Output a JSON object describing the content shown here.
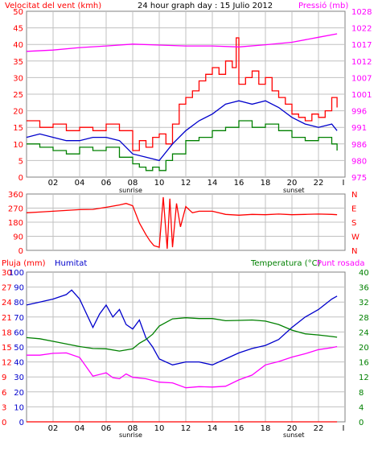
{
  "chart_data": [
    {
      "type": "line",
      "title": "24 hour graph day : 15 Julio 2012",
      "left_label": "Velocitat del vent (kmh)",
      "right_label": "Pressió (mb)",
      "ylim_left": [
        0,
        50
      ],
      "ylim_right": [
        975,
        1028
      ],
      "left_ticks": [
        "0",
        "5",
        "10",
        "15",
        "20",
        "25",
        "30",
        "35",
        "40",
        "45",
        "50"
      ],
      "right_ticks": [
        "975",
        "980",
        "986",
        "991",
        "996",
        "1001",
        "1007",
        "1012",
        "1017",
        "1022",
        "1028"
      ],
      "x_ticks": [
        "02",
        "04",
        "06",
        "08",
        "10",
        "12",
        "14",
        "16",
        "18",
        "20",
        "22"
      ],
      "x_last_tick": "I",
      "sunrise_label": "sunrise",
      "sunset_label": "sunset",
      "grid": true,
      "series": [
        {
          "color": "#ff0000",
          "kind": "steps",
          "hours": [
            0,
            1,
            2,
            3,
            4,
            5,
            6,
            7,
            8,
            8.5,
            9,
            9.5,
            10,
            10.5,
            11,
            11.5,
            12,
            12.5,
            13,
            13.5,
            14,
            14.5,
            15,
            15.5,
            15.8,
            16,
            16.5,
            17,
            17.5,
            18,
            18.5,
            19,
            19.5,
            20,
            20.5,
            21,
            21.5,
            22,
            22.5,
            23,
            23.4
          ],
          "values": [
            17,
            15,
            16,
            14,
            15,
            14,
            16,
            14,
            8,
            11,
            9,
            12,
            13,
            10,
            16,
            22,
            24,
            26,
            29,
            31,
            33,
            31,
            35,
            33,
            42,
            28,
            30,
            32,
            28,
            30,
            26,
            24,
            22,
            19,
            18,
            17,
            19,
            18,
            20,
            24,
            21
          ]
        },
        {
          "color": "#0000cc",
          "kind": "line",
          "hours": [
            0,
            1,
            2,
            3,
            4,
            5,
            6,
            7,
            8,
            9,
            10,
            11,
            12,
            13,
            14,
            15,
            16,
            17,
            18,
            19,
            20,
            21,
            22,
            23,
            23.4
          ],
          "values": [
            12,
            13,
            12,
            11,
            11,
            12,
            12,
            11,
            7,
            6,
            5,
            10,
            14,
            17,
            19,
            22,
            23,
            22,
            23,
            21,
            18,
            16,
            15,
            16,
            14
          ]
        },
        {
          "color": "#008000",
          "kind": "steps",
          "hours": [
            0,
            1,
            2,
            3,
            4,
            5,
            6,
            7,
            8,
            8.5,
            9,
            9.5,
            10,
            10.5,
            11,
            12,
            13,
            14,
            15,
            16,
            17,
            18,
            19,
            20,
            21,
            22,
            23,
            23.4
          ],
          "values": [
            10,
            9,
            8,
            7,
            9,
            8,
            9,
            6,
            4,
            3,
            2,
            3,
            2,
            5,
            7,
            11,
            12,
            14,
            15,
            17,
            15,
            16,
            14,
            12,
            11,
            12,
            10,
            8
          ]
        },
        {
          "color": "#ff00ff",
          "kind": "line",
          "axis": "right",
          "hours": [
            0,
            2,
            4,
            6,
            8,
            10,
            12,
            14,
            16,
            18,
            20,
            22,
            23.4
          ],
          "values": [
            1015.2,
            1015.6,
            1016.4,
            1016.9,
            1017.5,
            1017.2,
            1016.9,
            1016.9,
            1016.6,
            1017.3,
            1018.1,
            1019.7,
            1020.8
          ]
        }
      ]
    },
    {
      "type": "line",
      "left_ticks": [
        "0",
        "90",
        "180",
        "270",
        "360"
      ],
      "ylim_left": [
        0,
        360
      ],
      "right_letters": [
        "N",
        "W",
        "S",
        "E",
        "N"
      ],
      "grid": true,
      "series": [
        {
          "color": "#ff0000",
          "kind": "line",
          "hours": [
            0,
            1,
            2,
            3,
            4,
            5,
            6,
            7,
            7.5,
            8,
            8.5,
            9,
            9.3,
            9.6,
            10,
            10.3,
            10.6,
            10.8,
            11,
            11.3,
            11.6,
            12,
            12.5,
            13,
            14,
            15,
            16,
            17,
            18,
            19,
            20,
            21,
            22,
            23,
            23.4
          ],
          "values": [
            240,
            245,
            250,
            255,
            260,
            262,
            275,
            290,
            300,
            285,
            175,
            100,
            60,
            30,
            20,
            340,
            10,
            330,
            20,
            300,
            150,
            280,
            240,
            250,
            250,
            230,
            225,
            230,
            228,
            232,
            228,
            230,
            232,
            230,
            228
          ]
        }
      ]
    },
    {
      "type": "line",
      "left_label_a": "Pluja (mm)",
      "left_label_b": "Humitat",
      "right_label_a": "Temperatura (°C)",
      "right_label_b": "Punt rosada",
      "ylim_pluja": [
        0,
        30
      ],
      "ylim_humitat": [
        0,
        100
      ],
      "ylim_temp": [
        0,
        40
      ],
      "pluja_ticks": [
        "0",
        "3",
        "6",
        "9",
        "12",
        "15",
        "18",
        "21",
        "24",
        "27",
        "30"
      ],
      "humitat_ticks": [
        "0",
        "10",
        "20",
        "30",
        "40",
        "50",
        "60",
        "70",
        "80",
        "90",
        "100"
      ],
      "temp_ticks": [
        "0",
        "4",
        "8",
        "12",
        "16",
        "20",
        "24",
        "28",
        "32",
        "36",
        "40"
      ],
      "x_ticks": [
        "02",
        "04",
        "06",
        "08",
        "10",
        "12",
        "14",
        "16",
        "18",
        "20",
        "22"
      ],
      "x_last_tick": "I",
      "sunrise_label": "sunrise",
      "sunset_label": "sunset",
      "grid": true,
      "series": [
        {
          "color": "#0000cc",
          "kind": "line",
          "axis": "humitat",
          "hours": [
            0,
            1,
            2,
            3,
            3.4,
            4,
            5,
            5.5,
            6,
            6.5,
            7,
            7.5,
            8,
            8.5,
            9,
            9.5,
            10,
            11,
            12,
            13,
            14,
            15,
            16,
            17,
            18,
            19,
            20,
            21,
            22,
            23,
            23.4
          ],
          "values": [
            78,
            80,
            82,
            85,
            88,
            82,
            63,
            72,
            78,
            70,
            75,
            65,
            62,
            68,
            56,
            50,
            42,
            38,
            40,
            40,
            38,
            42,
            46,
            49,
            51,
            55,
            63,
            70,
            75,
            82,
            84
          ]
        },
        {
          "color": "#008000",
          "kind": "line",
          "axis": "temp",
          "hours": [
            0,
            1,
            2,
            3,
            4,
            5,
            6,
            7,
            8,
            8.5,
            9,
            9.5,
            10,
            11,
            12,
            13,
            14,
            15,
            16,
            17,
            18,
            19,
            20,
            21,
            22,
            23,
            23.4
          ],
          "values": [
            22.5,
            22.2,
            21.5,
            20.8,
            20.1,
            19.6,
            19.5,
            18.9,
            19.5,
            21,
            22,
            23.4,
            25.6,
            27.5,
            27.8,
            27.6,
            27.6,
            27,
            27.1,
            27.2,
            26.9,
            26,
            24.5,
            23.5,
            23.2,
            22.8,
            22.6
          ]
        },
        {
          "color": "#ff00ff",
          "kind": "line",
          "axis": "temp",
          "hours": [
            0,
            1,
            2,
            3,
            4,
            5,
            6,
            6.5,
            7,
            7.5,
            8,
            9,
            10,
            11,
            12,
            13,
            14,
            15,
            16,
            17,
            18,
            19,
            20,
            21,
            22,
            23,
            23.4
          ],
          "values": [
            17.8,
            17.8,
            18.3,
            18.4,
            17.2,
            12.2,
            13.1,
            11.8,
            11.5,
            12.8,
            11.9,
            11.5,
            10.6,
            10.4,
            9.1,
            9.4,
            9.3,
            9.5,
            11.2,
            12.5,
            15.2,
            16.1,
            17.3,
            18.2,
            19.3,
            19.8,
            20.1
          ]
        },
        {
          "color": "#ff0000",
          "kind": "line",
          "axis": "pluja",
          "hours": [
            0,
            23.4
          ],
          "values": [
            0,
            0
          ]
        }
      ]
    }
  ]
}
